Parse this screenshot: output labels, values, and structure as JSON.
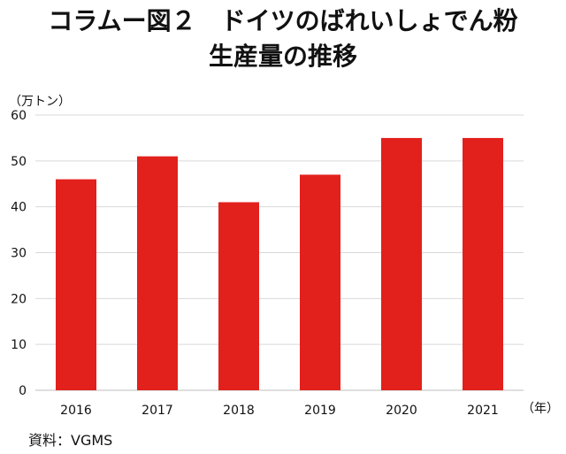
{
  "chart_data": {
    "type": "bar",
    "title_line1": "コラムー図２　ドイツのばれいしょでん粉",
    "title_line2": "生産量の推移",
    "ylabel": "（万トン）",
    "xlabel": "（年）",
    "categories": [
      "2016",
      "2017",
      "2018",
      "2019",
      "2020",
      "2021"
    ],
    "values": [
      46,
      51,
      41,
      47,
      55,
      55
    ],
    "ylim": [
      0,
      60
    ],
    "yticks": [
      "0",
      "10",
      "20",
      "30",
      "40",
      "50",
      "60"
    ],
    "grid": true,
    "bar_color": "#e2211c",
    "source": "資料：VGMS"
  }
}
